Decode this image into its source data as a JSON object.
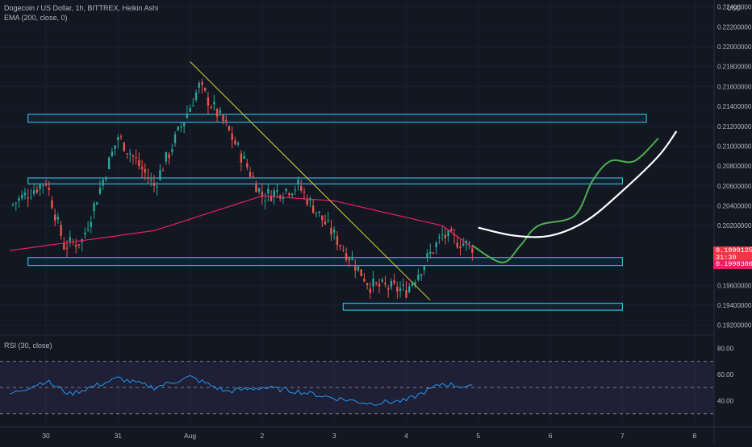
{
  "header": {
    "symbol_line": "Dogecoin / US Dollar, 1h, BITTREX, Heikin Ashi",
    "ema_line": "EMA (200, close, 0)",
    "currency": "USD"
  },
  "price_axis": {
    "ticks": [
      "0.22400000",
      "0.22200000",
      "0.22000000",
      "0.21800000",
      "0.21600000",
      "0.21400000",
      "0.21200000",
      "0.21000000",
      "0.20800000",
      "0.20600000",
      "0.20400000",
      "0.20200000",
      "0.19600000",
      "0.19400000",
      "0.19200000"
    ],
    "last_price_badge": [
      "0.19991250",
      "31:30"
    ],
    "ema_badge": "0.19983000"
  },
  "rsi": {
    "label": "RSI (30, close)",
    "ticks": [
      "80.00",
      "60.00",
      "40.00"
    ],
    "bands": {
      "upper": 70,
      "middle": 50,
      "lower": 30
    }
  },
  "time_axis": {
    "labels": [
      "30",
      "31",
      "Aug",
      "2",
      "3",
      "4",
      "5",
      "6",
      "7",
      "8"
    ]
  },
  "colors": {
    "background": "#131722",
    "bull": "#26a69a",
    "bear": "#ef5350",
    "ema": "#e91e63",
    "trendline": "#d6d63a",
    "zone": "#2bb6d6",
    "projection_green": "#4caf50",
    "projection_white": "#ffffff",
    "rsi_line": "#2196f3",
    "rsi_band": "#7e57c2",
    "last_badge": "#f23645"
  },
  "chart_data": {
    "type": "candlestick",
    "symbol": "DOGE/USD",
    "interval": "1h",
    "exchange": "BITTREX",
    "style": "Heikin Ashi",
    "x_range": [
      "Jul 29",
      "Aug 8"
    ],
    "y_range": [
      0.191,
      0.2247
    ],
    "ohlc_keyframes": [
      {
        "t": "Jul 29 12:00",
        "close": 0.204
      },
      {
        "t": "Jul 30 00:00",
        "close": 0.2065
      },
      {
        "t": "Jul 30 06:00",
        "close": 0.2
      },
      {
        "t": "Jul 30 12:00",
        "close": 0.2005
      },
      {
        "t": "Jul 31 00:00",
        "close": 0.211
      },
      {
        "t": "Jul 31 12:00",
        "close": 0.206
      },
      {
        "t": "Aug 1 00:00",
        "close": 0.214
      },
      {
        "t": "Aug 1 03:00",
        "close": 0.216
      },
      {
        "t": "Aug 1 12:00",
        "close": 0.212
      },
      {
        "t": "Aug 2 00:00",
        "close": 0.205
      },
      {
        "t": "Aug 2 12:00",
        "close": 0.206
      },
      {
        "t": "Aug 3 00:00",
        "close": 0.201
      },
      {
        "t": "Aug 3 12:00",
        "close": 0.196
      },
      {
        "t": "Aug 4 00:00",
        "close": 0.1955
      },
      {
        "t": "Aug 4 12:00",
        "close": 0.201
      },
      {
        "t": "Aug 4 22:00",
        "close": 0.1999
      }
    ],
    "ema200_keyframes": [
      {
        "t": "Jul 29 12:00",
        "v": 0.1995
      },
      {
        "t": "Jul 31 12:00",
        "v": 0.2015
      },
      {
        "t": "Aug 2 00:00",
        "v": 0.205
      },
      {
        "t": "Aug 3 00:00",
        "v": 0.2045
      },
      {
        "t": "Aug 4 12:00",
        "v": 0.202
      },
      {
        "t": "Aug 4 22:00",
        "v": 0.1998
      }
    ],
    "zones": [
      {
        "name": "resistance-zone-top",
        "t_start": "Jul 29 18:00",
        "t_end": "Aug 7 08:00",
        "y_low": 0.2124,
        "y_high": 0.2132
      },
      {
        "name": "resistance-zone-mid",
        "t_start": "Jul 29 18:00",
        "t_end": "Aug 7 00:00",
        "y_low": 0.2062,
        "y_high": 0.2068
      },
      {
        "name": "support-zone",
        "t_start": "Jul 29 18:00",
        "t_end": "Aug 7 00:00",
        "y_low": 0.198,
        "y_high": 0.1988
      },
      {
        "name": "support-zone-low",
        "t_start": "Aug 3 03:00",
        "t_end": "Aug 7 00:00",
        "y_low": 0.1935,
        "y_high": 0.1942
      }
    ],
    "trendline": {
      "from": {
        "t": "Aug 1 00:00",
        "y": 0.2185
      },
      "to": {
        "t": "Aug 4 08:00",
        "y": 0.1945
      }
    },
    "projection_green": [
      {
        "t": "Aug 4 22:00",
        "y": 0.2
      },
      {
        "t": "Aug 5 08:00",
        "y": 0.1983
      },
      {
        "t": "Aug 5 14:00",
        "y": 0.2
      },
      {
        "t": "Aug 5 20:00",
        "y": 0.202
      },
      {
        "t": "Aug 6 08:00",
        "y": 0.203
      },
      {
        "t": "Aug 6 14:00",
        "y": 0.2065
      },
      {
        "t": "Aug 6 20:00",
        "y": 0.2085
      },
      {
        "t": "Aug 7 04:00",
        "y": 0.2085
      },
      {
        "t": "Aug 7 12:00",
        "y": 0.2108
      }
    ],
    "projection_white": [
      {
        "t": "Aug 5 00:00",
        "y": 0.2018
      },
      {
        "t": "Aug 5 12:00",
        "y": 0.201
      },
      {
        "t": "Aug 6 00:00",
        "y": 0.201
      },
      {
        "t": "Aug 6 12:00",
        "y": 0.2025
      },
      {
        "t": "Aug 7 00:00",
        "y": 0.2055
      },
      {
        "t": "Aug 7 12:00",
        "y": 0.209
      },
      {
        "t": "Aug 7 18:00",
        "y": 0.2115
      }
    ],
    "rsi_range": [
      20,
      90
    ],
    "rsi_keyframes": [
      {
        "t": "Jul 29 12:00",
        "v": 45
      },
      {
        "t": "Jul 30 00:00",
        "v": 55
      },
      {
        "t": "Jul 30 08:00",
        "v": 45
      },
      {
        "t": "Jul 31 00:00",
        "v": 57
      },
      {
        "t": "Jul 31 12:00",
        "v": 50
      },
      {
        "t": "Aug 1 00:00",
        "v": 58
      },
      {
        "t": "Aug 1 12:00",
        "v": 47
      },
      {
        "t": "Aug 2 00:00",
        "v": 50
      },
      {
        "t": "Aug 2 12:00",
        "v": 47
      },
      {
        "t": "Aug 3 00:00",
        "v": 42
      },
      {
        "t": "Aug 3 12:00",
        "v": 38
      },
      {
        "t": "Aug 4 00:00",
        "v": 40
      },
      {
        "t": "Aug 4 12:00",
        "v": 53
      },
      {
        "t": "Aug 4 22:00",
        "v": 50
      }
    ]
  }
}
